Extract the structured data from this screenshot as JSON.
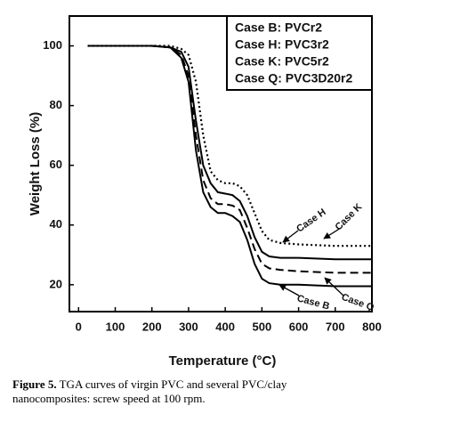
{
  "chart_data": {
    "type": "line",
    "x_label": "Temperature (°C)",
    "y_label": "Weight Loss (%)",
    "x": [
      25,
      100,
      200,
      250,
      280,
      300,
      320,
      340,
      360,
      380,
      400,
      420,
      440,
      460,
      480,
      500,
      520,
      550,
      600,
      700,
      800
    ],
    "series": [
      {
        "name": "Case B: PVCr2",
        "color": "#000000",
        "line_style": "solid",
        "values": [
          100,
          100,
          100,
          99.5,
          96,
          88,
          65,
          51,
          46,
          44,
          44,
          43,
          41,
          35,
          27,
          22,
          20.5,
          20,
          20,
          19.5,
          19.5
        ]
      },
      {
        "name": "Case H: PVC3r2",
        "color": "#000000",
        "line_style": "solid",
        "values": [
          100,
          100,
          100,
          99.5,
          98,
          93,
          75,
          60,
          54,
          51,
          50.5,
          50,
          48,
          43,
          36,
          31,
          29.5,
          29,
          29,
          28.5,
          28.5
        ]
      },
      {
        "name": "Case K: PVC5r2",
        "color": "#000000",
        "line_style": "dotted",
        "values": [
          100,
          100,
          100,
          100,
          99,
          97,
          88,
          70,
          58,
          55,
          54,
          54,
          53,
          50,
          44,
          38,
          35,
          34,
          33.5,
          33,
          33
        ]
      },
      {
        "name": "Case Q: PVC3D20r2",
        "color": "#000000",
        "line_style": "dashed",
        "values": [
          100,
          100,
          100,
          99.5,
          97,
          90,
          70,
          55,
          49,
          47,
          47,
          46.5,
          45,
          39,
          32,
          27,
          25.5,
          25,
          24.5,
          24,
          24
        ]
      }
    ],
    "annotations": [
      "Case H",
      "Case K",
      "Case B",
      "Case Q"
    ],
    "xlim": [
      -25,
      800
    ],
    "xticks": [
      0,
      100,
      200,
      300,
      400,
      500,
      600,
      700,
      800
    ],
    "ylim": [
      11,
      110
    ],
    "yticks": [
      20,
      40,
      60,
      80,
      100
    ],
    "legend": "upper right"
  },
  "caption": {
    "label": "Figure 5.",
    "text": "TGA curves of virgin PVC and several PVC/clay nanocomposites: screw speed at 100 rpm."
  }
}
